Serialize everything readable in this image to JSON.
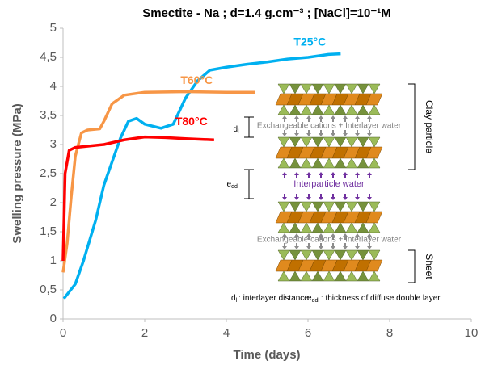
{
  "chart_data": {
    "type": "line",
    "title": "Smectite - Na ; d=1.4 g.cm⁻³ ; [NaCl]=10⁻¹M",
    "x_label": "Time (days)",
    "y_label": "Swelling pressure (MPa)",
    "xlim": [
      0,
      10
    ],
    "xticks": [
      0,
      2,
      4,
      6,
      8,
      10
    ],
    "ylim": [
      0,
      5
    ],
    "yticks": [
      0,
      {
        "value": 0.5,
        "label": "0,5"
      },
      1,
      {
        "value": 1.5,
        "label": "1,5"
      },
      2,
      {
        "value": 2.5,
        "label": "2,5"
      },
      3,
      {
        "value": 3.5,
        "label": "3,5"
      },
      4,
      {
        "value": 4.5,
        "label": "4,5"
      },
      5
    ],
    "series": [
      {
        "name": "T25°C",
        "color": "#00b0f0",
        "x": [
          0.02,
          0.3,
          0.5,
          0.8,
          1.0,
          1.2,
          1.4,
          1.6,
          1.8,
          2.0,
          2.4,
          2.7,
          3.0,
          3.3,
          3.6,
          4.0,
          4.5,
          5.0,
          5.5,
          6.0,
          6.5,
          6.8
        ],
        "values": [
          0.35,
          0.6,
          1.0,
          1.7,
          2.3,
          2.7,
          3.1,
          3.4,
          3.45,
          3.35,
          3.28,
          3.35,
          3.8,
          4.1,
          4.28,
          4.33,
          4.38,
          4.42,
          4.47,
          4.5,
          4.55,
          4.56
        ]
      },
      {
        "name": "T60°C",
        "color": "#f79646",
        "x": [
          0.0,
          0.1,
          0.2,
          0.3,
          0.45,
          0.6,
          0.9,
          1.0,
          1.2,
          1.5,
          2.0,
          3.0,
          4.0,
          4.7
        ],
        "values": [
          0.8,
          1.3,
          2.1,
          2.8,
          3.2,
          3.25,
          3.27,
          3.4,
          3.7,
          3.85,
          3.9,
          3.91,
          3.9,
          3.9
        ]
      },
      {
        "name": "T80°C",
        "color": "#ff0000",
        "x": [
          0.0,
          0.05,
          0.15,
          0.3,
          1.0,
          1.5,
          2.0,
          2.5,
          3.0,
          3.7
        ],
        "values": [
          1.0,
          2.5,
          2.9,
          2.95,
          3.0,
          3.08,
          3.13,
          3.12,
          3.1,
          3.08
        ]
      }
    ],
    "diagram": {
      "clay_particle": "Clay particle",
      "sheet": "Sheet",
      "interlayer_1": "Exchangeable cations + Interlayer water",
      "interparticle": "Interparticle water",
      "interlayer_2": "Exchangeable cations + Interlayer water",
      "d_symbol": [
        "d",
        "l"
      ],
      "e_symbol": [
        "e",
        "ddl"
      ],
      "key_d": ": interlayer distance",
      "key_e": ": thickness of diffuse double layer"
    }
  }
}
